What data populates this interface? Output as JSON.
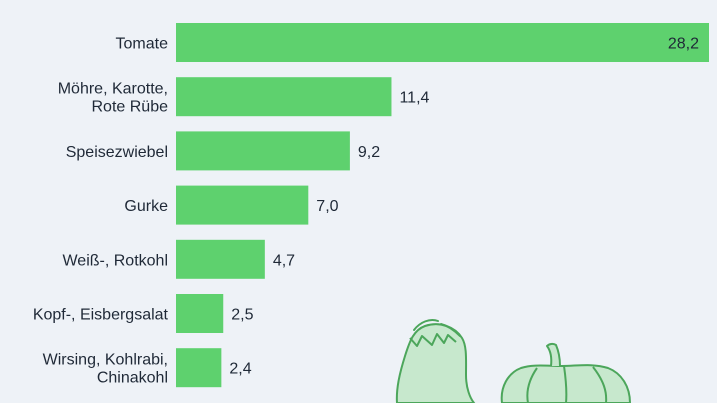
{
  "chart_data": {
    "type": "bar",
    "orientation": "horizontal",
    "categories": [
      "Tomate",
      "Möhre, Karotte, Rote Rübe",
      "Speisezwiebel",
      "Gurke",
      "Weiß-, Rotkohl",
      "Kopf-, Eisbergsalat",
      "Wirsing, Kohlrabi, Chinakohl"
    ],
    "category_lines": [
      [
        "Tomate"
      ],
      [
        "Möhre, Karotte,",
        "Rote Rübe"
      ],
      [
        "Speisezwiebel"
      ],
      [
        "Gurke"
      ],
      [
        "Weiß-, Rotkohl"
      ],
      [
        "Kopf-, Eisbergsalat"
      ],
      [
        "Wirsing, Kohlrabi,",
        "Chinakohl"
      ]
    ],
    "values": [
      28.2,
      11.4,
      9.2,
      7.0,
      4.7,
      2.5,
      2.4
    ],
    "value_labels": [
      "28,2",
      "11,4",
      "9,2",
      "7,0",
      "4,7",
      "2,5",
      "2,4"
    ],
    "xlim": [
      0,
      28.2
    ],
    "title": "",
    "xlabel": "",
    "ylabel": "",
    "grid": false,
    "colors": {
      "bar": "#5ed16e",
      "background": "#eef2f7",
      "label": "#1f2937",
      "illustration_fill": "#c7e8cd",
      "illustration_stroke": "#4ca65b"
    }
  },
  "decoration": {
    "illustration_icons": [
      "eggplant-icon",
      "pumpkin-icon"
    ]
  }
}
